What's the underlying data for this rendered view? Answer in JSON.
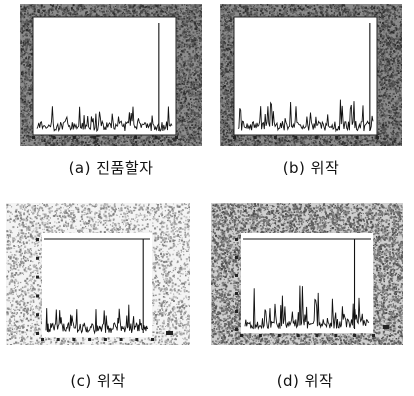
{
  "figure": {
    "panels": [
      {
        "id": "a",
        "caption": "(a) 진품할자",
        "style": "dark-frame",
        "spike_index": 84
      },
      {
        "id": "b",
        "caption": "(b) 위작",
        "style": "dark-frame",
        "spike_index": 92
      },
      {
        "id": "c",
        "caption": "(c) 위작",
        "style": "light-frame",
        "spike_index": 88
      },
      {
        "id": "d",
        "caption": "(d) 위작",
        "style": "medium-frame",
        "spike_index": 92
      }
    ]
  }
}
